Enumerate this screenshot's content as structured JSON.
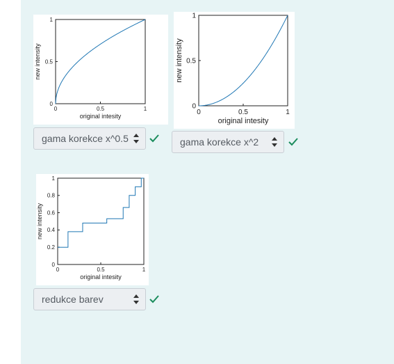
{
  "panels": [
    {
      "select": {
        "value": "gama korekce x^0.5",
        "options": [
          "gama korekce x^0.5",
          "gama korekce x^2",
          "redukce barev"
        ]
      },
      "chart_data": {
        "type": "line",
        "xlabel": "original intesity",
        "ylabel": "new intensity",
        "xlim": [
          0,
          1
        ],
        "ylim": [
          0,
          1
        ],
        "xticks": [
          "0",
          "0.5",
          "1"
        ],
        "yticks": [
          "0",
          "0.5",
          "1"
        ],
        "series": [
          {
            "function": "x^0.5",
            "color": "#1f77b4",
            "x": [
              0,
              0.01,
              0.05,
              0.1,
              0.2,
              0.3,
              0.4,
              0.5,
              0.6,
              0.7,
              0.8,
              0.9,
              1
            ],
            "y": [
              0,
              0.1,
              0.224,
              0.316,
              0.447,
              0.548,
              0.632,
              0.707,
              0.775,
              0.837,
              0.894,
              0.949,
              1
            ]
          }
        ]
      }
    },
    {
      "select": {
        "value": "gama korekce x^2",
        "options": [
          "gama korekce x^0.5",
          "gama korekce x^2",
          "redukce barev"
        ]
      },
      "chart_data": {
        "type": "line",
        "xlabel": "original intesity",
        "ylabel": "new intensity",
        "xlim": [
          0,
          1
        ],
        "ylim": [
          0,
          1
        ],
        "xticks": [
          "0",
          "0.5",
          "1"
        ],
        "yticks": [
          "0",
          "0.5",
          "1"
        ],
        "series": [
          {
            "function": "x^2",
            "color": "#1f77b4",
            "x": [
              0,
              0.1,
              0.2,
              0.3,
              0.4,
              0.5,
              0.6,
              0.7,
              0.8,
              0.9,
              1
            ],
            "y": [
              0,
              0.01,
              0.04,
              0.09,
              0.16,
              0.25,
              0.36,
              0.49,
              0.64,
              0.81,
              1
            ]
          }
        ]
      }
    },
    {
      "select": {
        "value": "redukce barev",
        "options": [
          "gama korekce x^0.5",
          "gama korekce x^2",
          "redukce barev"
        ]
      },
      "chart_data": {
        "type": "line",
        "xlabel": "original intesity",
        "ylabel": "new intensity",
        "xlim": [
          0,
          1
        ],
        "ylim": [
          0,
          1
        ],
        "xticks": [
          "0",
          "0.5",
          "1"
        ],
        "yticks": [
          "0",
          "0.2",
          "0.4",
          "0.6",
          "0.8",
          "1"
        ],
        "series": [
          {
            "step": true,
            "color": "#1f77b4",
            "x": [
              0,
              0.12,
              0.12,
              0.29,
              0.29,
              0.57,
              0.57,
              0.76,
              0.76,
              0.83,
              0.83,
              0.9,
              0.9,
              0.97,
              0.97,
              1
            ],
            "y": [
              0.2,
              0.2,
              0.38,
              0.38,
              0.48,
              0.48,
              0.53,
              0.53,
              0.66,
              0.66,
              0.8,
              0.8,
              0.9,
              0.9,
              1,
              1
            ]
          }
        ]
      }
    }
  ],
  "colors": {
    "panel_bg": "#e7f4f5",
    "line": "#1f77b4",
    "check": "#1a8c5c"
  }
}
